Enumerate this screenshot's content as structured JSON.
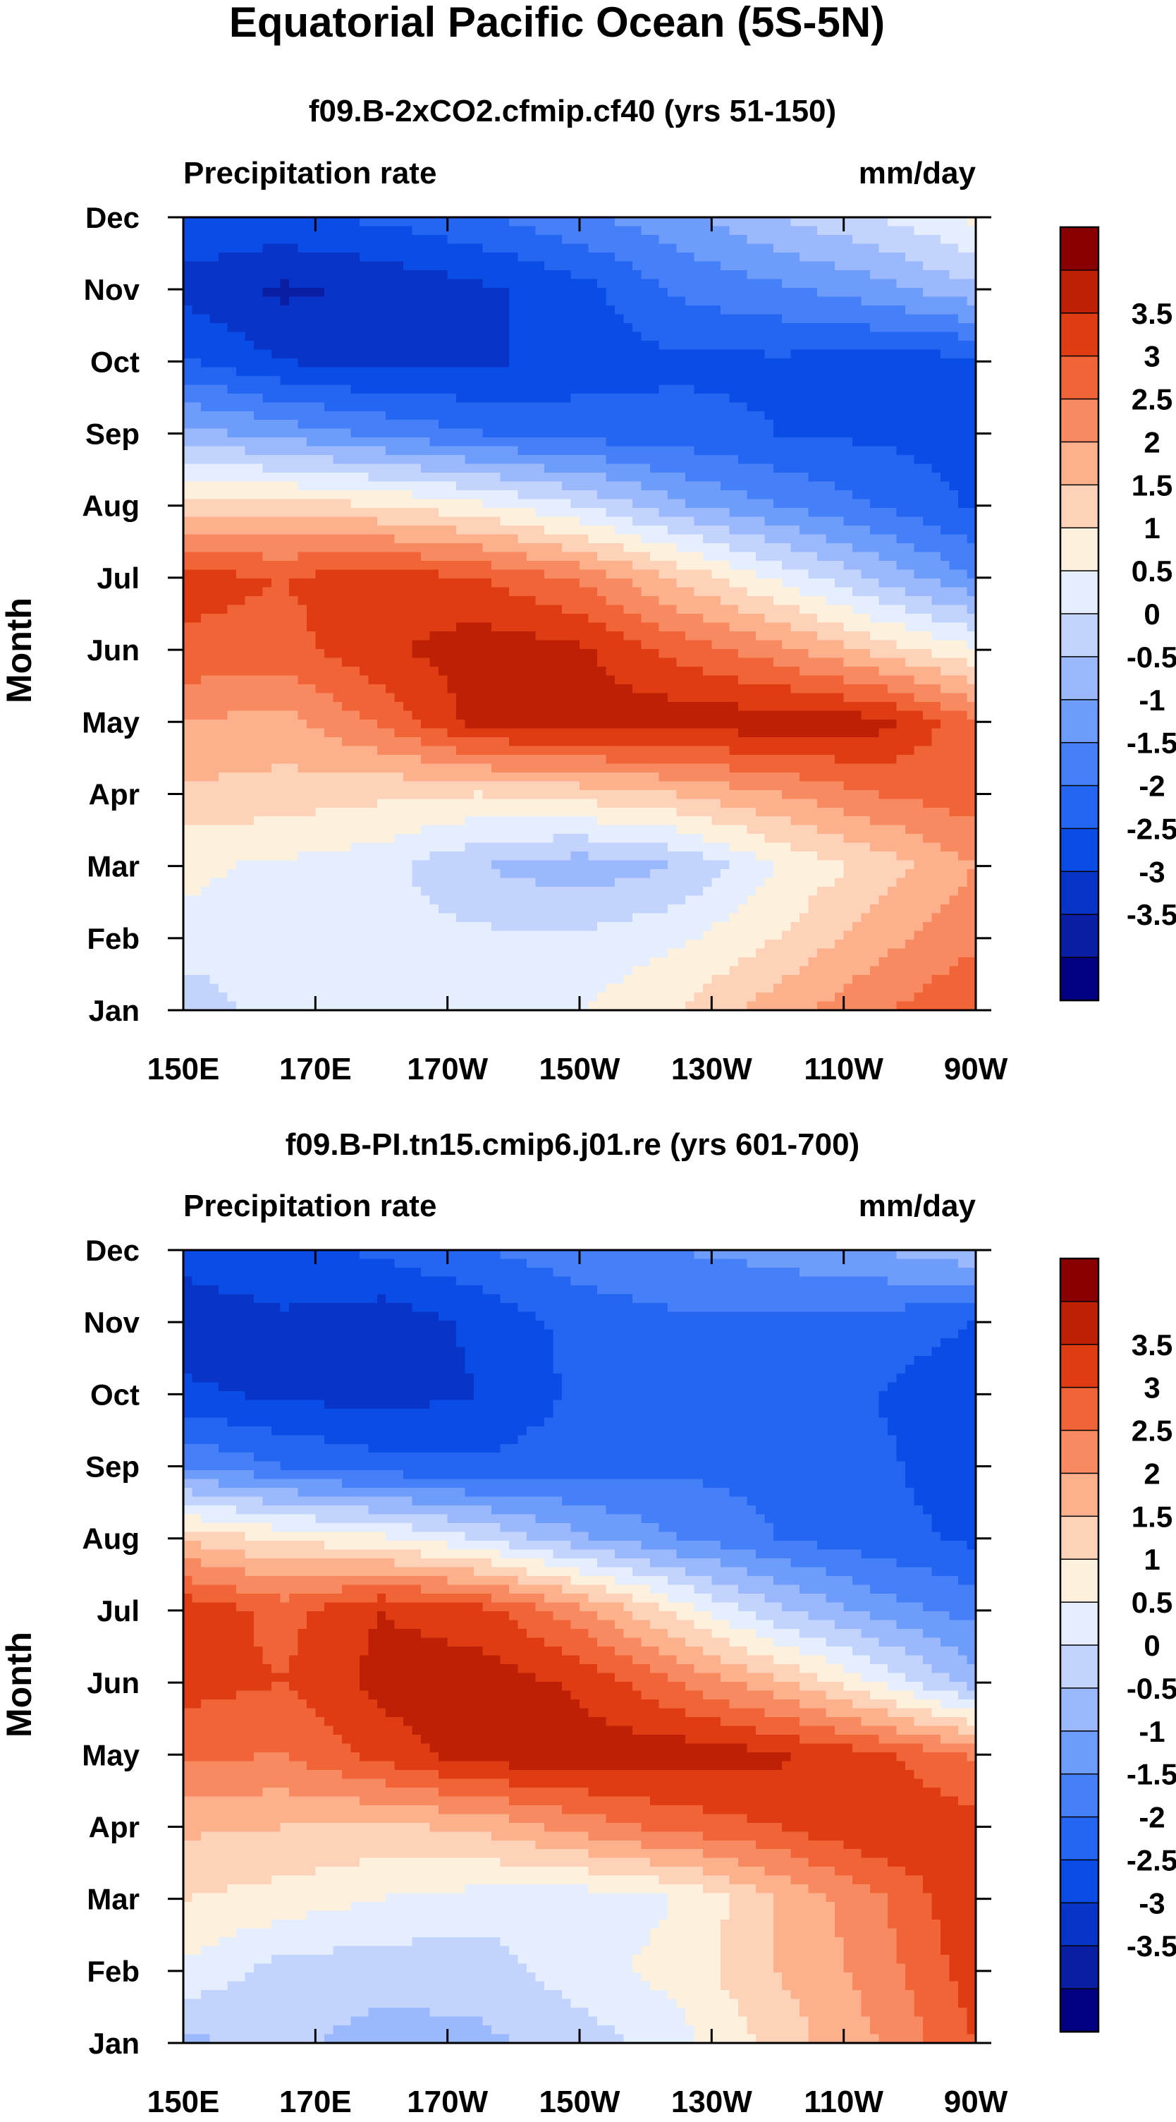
{
  "figure_title": "Equatorial Pacific Ocean (5S-5N)",
  "chart_data": [
    {
      "type": "heatmap",
      "title": "f09.B-2xCO2.cfmip.cf40 (yrs 51-150)",
      "variable_label": "Precipitation rate",
      "units_label": "mm/day",
      "ylabel": "Month",
      "xlabel": "",
      "x_ticks": [
        "150E",
        "170E",
        "170W",
        "150W",
        "130W",
        "110W",
        "90W"
      ],
      "y_ticks": [
        "Jan",
        "Feb",
        "Mar",
        "Apr",
        "May",
        "Jun",
        "Jul",
        "Aug",
        "Sep",
        "Oct",
        "Nov",
        "Dec"
      ],
      "xlim": [
        150,
        270
      ],
      "ylim": [
        1,
        12
      ],
      "colorbar_labels": [
        "3.5",
        "3",
        "2.5",
        "2",
        "1.5",
        "1",
        "0.5",
        "0",
        "-0.5",
        "-1",
        "-1.5",
        "-2",
        "-2.5",
        "-3",
        "-3.5"
      ],
      "levels": [
        -4,
        -3.5,
        -3,
        -2.5,
        -2,
        -1.5,
        -1,
        -0.5,
        0,
        0.5,
        1,
        1.5,
        2,
        2.5,
        3,
        3.5,
        4
      ],
      "colors": [
        "#000080",
        "#0a1ea4",
        "#0834c8",
        "#0a4ce6",
        "#2465f2",
        "#4680f8",
        "#6e9cfa",
        "#9ab8fb",
        "#c2d4fd",
        "#e4eefc",
        "#fdf0dc",
        "#fdd2b8",
        "#fcb08c",
        "#f88a62",
        "#f06438",
        "#e03c14",
        "#be2006",
        "#8a0000"
      ],
      "x": [
        150,
        165,
        180,
        195,
        210,
        225,
        240,
        255,
        270
      ],
      "y": [
        1,
        2,
        3,
        4,
        5,
        6,
        7,
        8,
        9,
        10,
        11,
        12
      ],
      "z": [
        [
          -0.5,
          0.4,
          0.3,
          0.3,
          0.5,
          1.0,
          1.8,
          2.4,
          3.0
        ],
        [
          0.4,
          0.3,
          0.2,
          0.1,
          0.1,
          0.4,
          1.0,
          1.8,
          2.4
        ],
        [
          0.6,
          0.4,
          0.2,
          -0.5,
          -0.8,
          -0.5,
          0.5,
          1.2,
          2.0
        ],
        [
          1.4,
          1.3,
          1.1,
          1.0,
          1.2,
          1.5,
          2.0,
          2.5,
          2.8
        ],
        [
          2.0,
          1.8,
          2.6,
          3.7,
          3.8,
          3.8,
          3.8,
          3.7,
          2.6
        ],
        [
          2.9,
          2.8,
          3.4,
          3.8,
          3.6,
          2.8,
          2.2,
          1.3,
          0.6
        ],
        [
          3.2,
          3.0,
          3.3,
          3.0,
          2.4,
          1.4,
          0.4,
          -0.6,
          -1.5
        ],
        [
          1.3,
          1.2,
          1.0,
          0.6,
          0.0,
          -0.9,
          -1.5,
          -2.0,
          -2.6
        ],
        [
          -0.8,
          -1.2,
          -1.6,
          -2.0,
          -2.2,
          -2.3,
          -2.5,
          -2.6,
          -2.7
        ],
        [
          -2.4,
          -3.0,
          -3.2,
          -3.1,
          -2.8,
          -2.6,
          -2.6,
          -2.7,
          -2.7
        ],
        [
          -3.2,
          -3.6,
          -3.4,
          -3.1,
          -2.7,
          -1.9,
          -1.6,
          -1.2,
          -0.6
        ],
        [
          -2.6,
          -2.6,
          -2.4,
          -2.1,
          -1.6,
          -1.2,
          -0.5,
          0.0,
          0.6
        ]
      ]
    },
    {
      "type": "heatmap",
      "title": "f09.B-PI.tn15.cmip6.j01.re (yrs 601-700)",
      "variable_label": "Precipitation rate",
      "units_label": "mm/day",
      "ylabel": "Month",
      "xlabel": "",
      "x_ticks": [
        "150E",
        "170E",
        "170W",
        "150W",
        "130W",
        "110W",
        "90W"
      ],
      "y_ticks": [
        "Jan",
        "Feb",
        "Mar",
        "Apr",
        "May",
        "Jun",
        "Jul",
        "Aug",
        "Sep",
        "Oct",
        "Nov",
        "Dec"
      ],
      "xlim": [
        150,
        270
      ],
      "ylim": [
        1,
        12
      ],
      "colorbar_labels": [
        "3.5",
        "3",
        "2.5",
        "2",
        "1.5",
        "1",
        "0.5",
        "0",
        "-0.5",
        "-1",
        "-1.5",
        "-2",
        "-2.5",
        "-3",
        "-3.5"
      ],
      "levels": [
        -4,
        -3.5,
        -3,
        -2.5,
        -2,
        -1.5,
        -1,
        -0.5,
        0,
        0.5,
        1,
        1.5,
        2,
        2.5,
        3,
        3.5,
        4
      ],
      "colors": [
        "#000080",
        "#0a1ea4",
        "#0834c8",
        "#0a4ce6",
        "#2465f2",
        "#4680f8",
        "#6e9cfa",
        "#9ab8fb",
        "#c2d4fd",
        "#e4eefc",
        "#fdf0dc",
        "#fdd2b8",
        "#fcb08c",
        "#f88a62",
        "#f06438",
        "#e03c14",
        "#be2006",
        "#8a0000"
      ],
      "x": [
        150,
        165,
        180,
        195,
        210,
        225,
        240,
        255,
        270
      ],
      "y": [
        1,
        2,
        3,
        4,
        5,
        6,
        7,
        8,
        9,
        10,
        11,
        12
      ],
      "z": [
        [
          -0.6,
          -0.4,
          -0.7,
          -0.6,
          -0.3,
          0.3,
          1.2,
          2.0,
          3.0
        ],
        [
          0.4,
          -0.2,
          -0.3,
          -0.3,
          0.3,
          0.7,
          1.5,
          2.2,
          3.3
        ],
        [
          1.0,
          0.8,
          0.5,
          0.3,
          0.2,
          0.5,
          1.5,
          2.4,
          3.5
        ],
        [
          1.6,
          1.5,
          1.4,
          1.6,
          2.2,
          2.7,
          3.0,
          3.5,
          3.2
        ],
        [
          2.6,
          2.5,
          3.2,
          3.8,
          3.8,
          3.8,
          3.6,
          3.1,
          2.4
        ],
        [
          3.2,
          3.0,
          3.7,
          3.8,
          3.4,
          2.5,
          1.6,
          0.5,
          -0.8
        ],
        [
          3.4,
          2.8,
          3.5,
          3.2,
          2.2,
          0.8,
          -0.4,
          -1.2,
          -1.7
        ],
        [
          1.4,
          0.9,
          0.6,
          0.0,
          -0.9,
          -1.5,
          -2.0,
          -2.3,
          -2.6
        ],
        [
          -1.5,
          -2.0,
          -2.3,
          -2.4,
          -2.2,
          -2.1,
          -2.2,
          -2.4,
          -2.8
        ],
        [
          -2.9,
          -3.1,
          -3.2,
          -3.0,
          -2.4,
          -2.3,
          -2.3,
          -2.5,
          -2.9
        ],
        [
          -3.3,
          -3.1,
          -3.3,
          -2.9,
          -2.3,
          -2.1,
          -2.1,
          -2.2,
          -2.5
        ],
        [
          -2.8,
          -2.6,
          -2.4,
          -2.0,
          -1.7,
          -1.5,
          -1.3,
          -1.0,
          -0.6
        ]
      ]
    }
  ]
}
